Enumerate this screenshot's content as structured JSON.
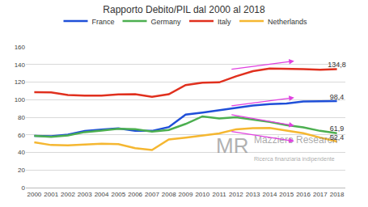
{
  "chart_data": {
    "type": "line",
    "title": "Rapporto Debito/PIL dal 2000 al 2018",
    "categories": [
      "2000",
      "2001",
      "2002",
      "2003",
      "2004",
      "2005",
      "2006",
      "2007",
      "2008",
      "2009",
      "2010",
      "2011",
      "2012",
      "2013",
      "2014",
      "2015",
      "2016",
      "2017",
      "2018"
    ],
    "series": [
      {
        "name": "France",
        "color": "#1f4fd8",
        "values": [
          58.9,
          58.3,
          60.3,
          64.4,
          65.9,
          67.4,
          64.6,
          64.5,
          68.8,
          83.0,
          85.3,
          87.8,
          90.6,
          93.4,
          94.9,
          95.6,
          98.0,
          98.4,
          98.4
        ],
        "value_labels": [
          null,
          null,
          null,
          null,
          null,
          null,
          null,
          null,
          null,
          null,
          null,
          null,
          null,
          null,
          null,
          null,
          null,
          null,
          "98,4"
        ]
      },
      {
        "name": "Germany",
        "color": "#4caf50",
        "values": [
          58.9,
          57.7,
          59.4,
          63.1,
          64.8,
          67.0,
          66.5,
          63.7,
          65.5,
          72.4,
          81.0,
          78.6,
          80.0,
          77.4,
          74.6,
          71.0,
          68.5,
          64.5,
          61.9
        ],
        "value_labels": [
          null,
          null,
          null,
          null,
          null,
          null,
          null,
          null,
          null,
          null,
          null,
          null,
          null,
          null,
          null,
          null,
          null,
          null,
          "61,9"
        ]
      },
      {
        "name": "Italy",
        "color": "#e0301e",
        "values": [
          108.6,
          108.3,
          105.4,
          104.7,
          104.7,
          106.0,
          106.3,
          103.2,
          106.2,
          116.6,
          119.2,
          119.7,
          126.5,
          132.4,
          135.4,
          135.3,
          134.8,
          134.1,
          134.8
        ],
        "value_labels": [
          null,
          null,
          null,
          null,
          null,
          null,
          null,
          null,
          null,
          null,
          null,
          null,
          null,
          null,
          null,
          null,
          null,
          null,
          "134,8"
        ]
      },
      {
        "name": "Netherlands",
        "color": "#f5b731",
        "values": [
          51.4,
          48.4,
          48.0,
          49.0,
          49.8,
          49.4,
          44.8,
          42.7,
          54.7,
          56.8,
          59.3,
          61.6,
          66.3,
          67.7,
          67.9,
          64.6,
          61.9,
          56.9,
          52.4
        ],
        "value_labels": [
          null,
          null,
          null,
          null,
          null,
          null,
          null,
          null,
          null,
          null,
          null,
          null,
          null,
          null,
          null,
          null,
          null,
          null,
          "52,4"
        ]
      }
    ],
    "ylim": [
      0,
      160
    ],
    "yticks": [
      0,
      20,
      40,
      60,
      80,
      100,
      120,
      140,
      160
    ],
    "grid": true,
    "legend": "top",
    "annotations": [
      "MR",
      "Mazziero Research",
      "Ricerca finanziaria indipendente"
    ]
  }
}
